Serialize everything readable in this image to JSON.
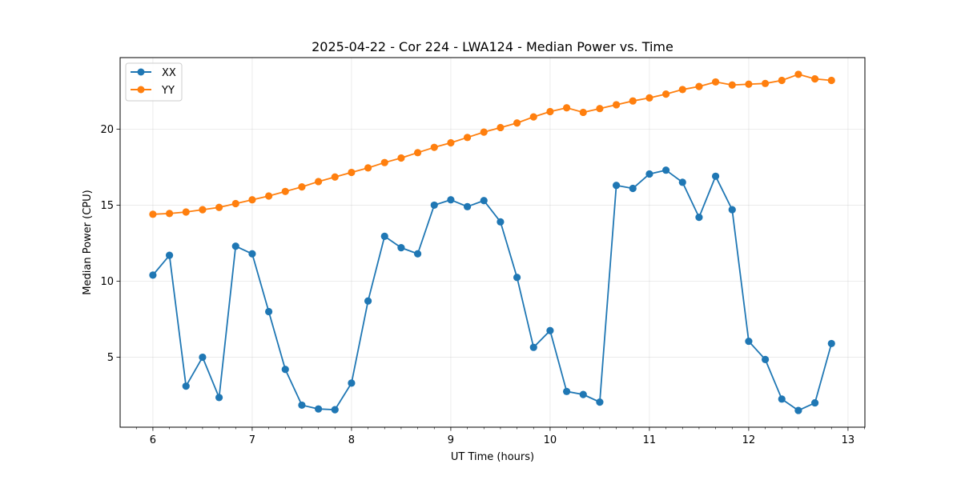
{
  "chart_data": {
    "type": "line",
    "title": "2025-04-22 - Cor 224 - LWA124 - Median Power vs. Time",
    "xlabel": "UT Time (hours)",
    "ylabel": "Median Power (CPU)",
    "xlim": [
      5.67,
      13.17
    ],
    "ylim": [
      0.4,
      24.7
    ],
    "xticks": [
      6,
      7,
      8,
      9,
      10,
      11,
      12,
      13
    ],
    "xtick_labels": [
      "6",
      "7",
      "8",
      "9",
      "10",
      "11",
      "12",
      "13"
    ],
    "yticks": [
      5,
      10,
      15,
      20
    ],
    "ytick_labels": [
      "5",
      "10",
      "15",
      "20"
    ],
    "grid": true,
    "legend_position": "upper-left",
    "x": [
      6.0,
      6.1667,
      6.3333,
      6.5,
      6.6667,
      6.8333,
      7.0,
      7.1667,
      7.3333,
      7.5,
      7.6667,
      7.8333,
      8.0,
      8.1667,
      8.3333,
      8.5,
      8.6667,
      8.8333,
      9.0,
      9.1667,
      9.3333,
      9.5,
      9.6667,
      9.8333,
      10.0,
      10.1667,
      10.3333,
      10.5,
      10.6667,
      10.8333,
      11.0,
      11.1667,
      11.3333,
      11.5,
      11.6667,
      11.8333,
      12.0,
      12.1667,
      12.3333,
      12.5,
      12.6667,
      12.8333
    ],
    "series": [
      {
        "name": "XX",
        "color": "#1f77b4",
        "values": [
          10.4,
          11.7,
          3.1,
          5.0,
          2.35,
          12.3,
          11.8,
          8.0,
          4.2,
          1.85,
          1.6,
          1.55,
          3.3,
          8.7,
          12.95,
          12.2,
          11.8,
          15.0,
          15.35,
          14.9,
          15.3,
          13.9,
          10.25,
          5.65,
          6.75,
          2.75,
          2.55,
          2.05,
          16.3,
          16.1,
          17.05,
          17.3,
          16.5,
          14.2,
          16.9,
          14.7,
          6.05,
          4.85,
          2.25,
          1.5,
          2.0,
          5.9
        ]
      },
      {
        "name": "YY",
        "color": "#ff7f0e",
        "values": [
          14.4,
          14.45,
          14.55,
          14.7,
          14.85,
          15.1,
          15.35,
          15.6,
          15.9,
          16.2,
          16.55,
          16.85,
          17.15,
          17.45,
          17.8,
          18.1,
          18.45,
          18.8,
          19.1,
          19.45,
          19.8,
          20.1,
          20.4,
          20.8,
          21.15,
          21.4,
          21.1,
          21.35,
          21.6,
          21.85,
          22.05,
          22.3,
          22.6,
          22.8,
          23.1,
          22.9,
          22.95,
          23.0,
          23.2,
          23.6,
          23.3,
          23.2
        ]
      }
    ]
  }
}
